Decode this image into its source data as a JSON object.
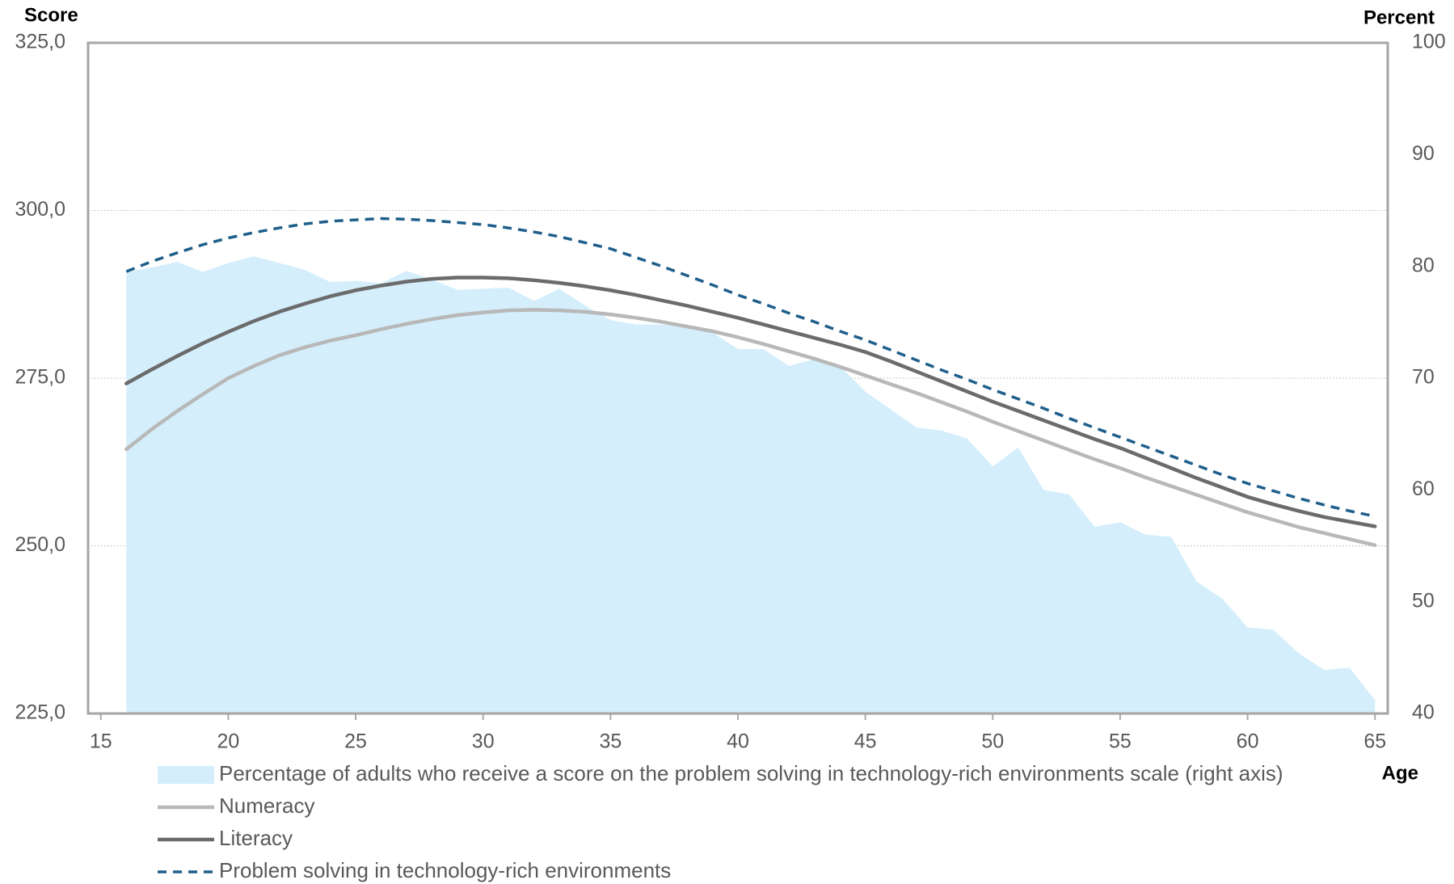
{
  "chart_data": {
    "type": "line",
    "y_label": "Score",
    "y2_label": "Percent",
    "x_label": "Age",
    "x": [
      16,
      17,
      18,
      19,
      20,
      21,
      22,
      23,
      24,
      25,
      26,
      27,
      28,
      29,
      30,
      31,
      32,
      33,
      34,
      35,
      36,
      37,
      38,
      39,
      40,
      41,
      42,
      43,
      44,
      45,
      46,
      47,
      48,
      49,
      50,
      51,
      52,
      53,
      54,
      55,
      56,
      57,
      58,
      59,
      60,
      61,
      62,
      63,
      64,
      65
    ],
    "xlim": [
      14.5,
      65.5
    ],
    "xticks": [
      15,
      20,
      25,
      30,
      35,
      40,
      45,
      50,
      55,
      60,
      65
    ],
    "ylim": [
      225,
      325
    ],
    "yticks": [
      {
        "value": 225,
        "label": "225,0"
      },
      {
        "value": 250,
        "label": "250,0"
      },
      {
        "value": 275,
        "label": "275,0"
      },
      {
        "value": 300,
        "label": "300,0"
      },
      {
        "value": 325,
        "label": "325,0"
      }
    ],
    "y2lim": [
      40,
      100
    ],
    "y2ticks": [
      40,
      50,
      60,
      70,
      80,
      90,
      100
    ],
    "grid": true,
    "series": [
      {
        "name": "Percentage of adults who receive a score on the problem solving in technology-rich environments scale (right axis)",
        "kind": "area",
        "axis": "y2",
        "color": "#d4eefc",
        "values": [
          79.5,
          79.9,
          80.4,
          79.5,
          80.3,
          80.9,
          80.3,
          79.7,
          78.6,
          78.7,
          78.5,
          79.6,
          78.8,
          77.9,
          78.0,
          78.1,
          76.9,
          78.0,
          76.5,
          75.2,
          74.8,
          74.8,
          74.6,
          74.1,
          72.6,
          72.6,
          71.1,
          71.7,
          71.1,
          68.8,
          67.2,
          65.6,
          65.3,
          64.6,
          62.1,
          63.8,
          60.0,
          59.6,
          56.7,
          57.1,
          56.0,
          55.8,
          51.8,
          50.3,
          47.7,
          47.5,
          45.4,
          43.9,
          44.1,
          41.2
        ]
      },
      {
        "name": "Numeracy",
        "kind": "line",
        "line_style": "solid",
        "color": "#b8b8b8",
        "values": [
          264.4,
          267.4,
          270.1,
          272.6,
          275.0,
          276.8,
          278.4,
          279.6,
          280.6,
          281.4,
          282.3,
          283.1,
          283.8,
          284.4,
          284.8,
          285.1,
          285.2,
          285.1,
          284.9,
          284.5,
          284.0,
          283.4,
          282.7,
          282.0,
          281.1,
          280.1,
          279.0,
          277.9,
          276.7,
          275.4,
          274.1,
          272.8,
          271.4,
          270.0,
          268.5,
          267.1,
          265.7,
          264.3,
          262.9,
          261.6,
          260.2,
          258.9,
          257.6,
          256.3,
          255.0,
          253.9,
          252.8,
          251.9,
          251.0,
          250.1
        ]
      },
      {
        "name": "Literacy",
        "kind": "line",
        "line_style": "solid",
        "color": "#6b6b6b",
        "values": [
          274.2,
          276.3,
          278.3,
          280.2,
          281.9,
          283.5,
          284.9,
          286.1,
          287.2,
          288.1,
          288.8,
          289.4,
          289.8,
          290.0,
          290.0,
          289.9,
          289.6,
          289.2,
          288.7,
          288.1,
          287.4,
          286.6,
          285.8,
          284.9,
          284.0,
          283.0,
          282.0,
          281.0,
          280.0,
          278.9,
          277.5,
          276.0,
          274.5,
          273.0,
          271.5,
          270.1,
          268.7,
          267.3,
          265.9,
          264.6,
          263.1,
          261.6,
          260.1,
          258.7,
          257.3,
          256.2,
          255.2,
          254.3,
          253.6,
          252.9
        ]
      },
      {
        "name": "Problem solving in technology-rich environments",
        "kind": "line",
        "line_style": "dashed",
        "color": "#1f5f8b",
        "values": [
          290.9,
          292.4,
          293.7,
          294.9,
          295.9,
          296.7,
          297.4,
          298.0,
          298.4,
          298.6,
          298.8,
          298.7,
          298.5,
          298.2,
          297.9,
          297.4,
          296.8,
          296.1,
          295.2,
          294.3,
          293.0,
          291.7,
          290.3,
          288.9,
          287.4,
          286.1,
          284.7,
          283.4,
          282.0,
          280.7,
          279.2,
          277.7,
          276.2,
          274.8,
          273.3,
          271.9,
          270.5,
          269.0,
          267.6,
          266.2,
          264.8,
          263.4,
          262.0,
          260.6,
          259.3,
          258.2,
          257.1,
          256.1,
          255.2,
          254.4
        ]
      }
    ]
  }
}
